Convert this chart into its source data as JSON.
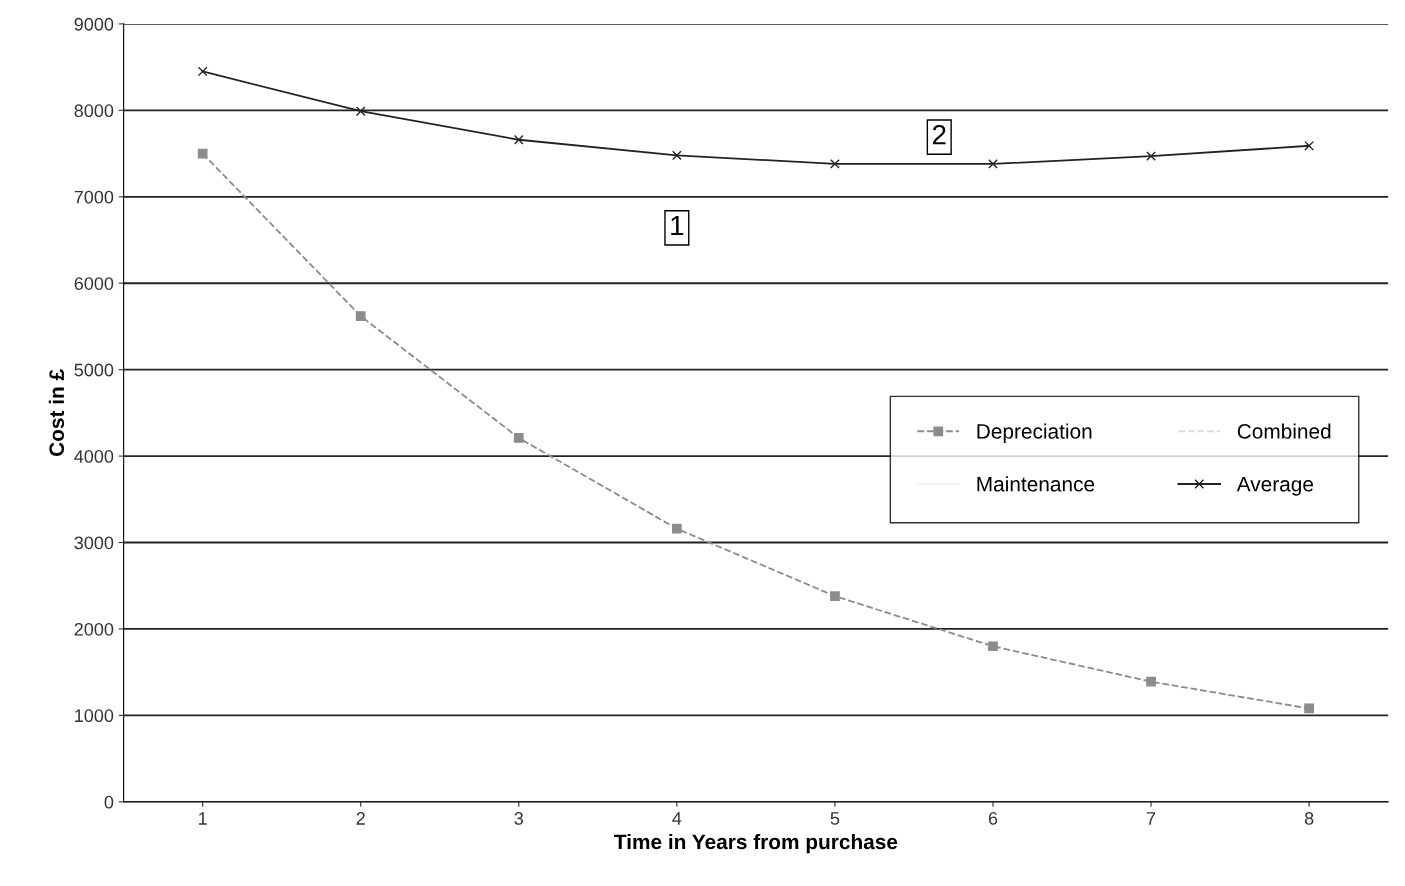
{
  "chart_data": {
    "type": "line",
    "xlabel": "Time in Years from purchase",
    "ylabel": "Cost in £",
    "x": [
      1,
      2,
      3,
      4,
      5,
      6,
      7,
      8
    ],
    "xlim": [
      0.5,
      8.5
    ],
    "xticks": [
      1,
      2,
      3,
      4,
      5,
      6,
      7,
      8
    ],
    "ylim": [
      0,
      9000
    ],
    "yticks": [
      0,
      1000,
      2000,
      3000,
      4000,
      5000,
      6000,
      7000,
      8000,
      9000
    ],
    "grid": "y",
    "legend": "right",
    "series": [
      {
        "name": "Depreciation",
        "color": "#8c8c8c",
        "marker": "square",
        "line_style": "dashed",
        "values": [
          7500,
          5620,
          4210,
          3160,
          2380,
          1800,
          1390,
          1080
        ]
      },
      {
        "name": "Maintenance",
        "color": "#f2f2f2",
        "marker": "none",
        "line_style": "solid",
        "values": [
          null,
          null,
          null,
          null,
          null,
          null,
          null,
          null
        ]
      },
      {
        "name": "Combined",
        "color": "#dcdcdc",
        "marker": "none",
        "line_style": "dashed",
        "values": [
          null,
          null,
          null,
          null,
          null,
          null,
          null,
          null
        ]
      },
      {
        "name": "Average",
        "color": "#222222",
        "marker": "cross",
        "line_style": "solid",
        "values": [
          8450,
          7990,
          7660,
          7480,
          7380,
          7380,
          7470,
          7590
        ]
      }
    ],
    "annotations": [
      {
        "text": "1",
        "x": 4.0,
        "y": 6640
      },
      {
        "text": "2",
        "x": 5.66,
        "y": 7690
      }
    ]
  }
}
